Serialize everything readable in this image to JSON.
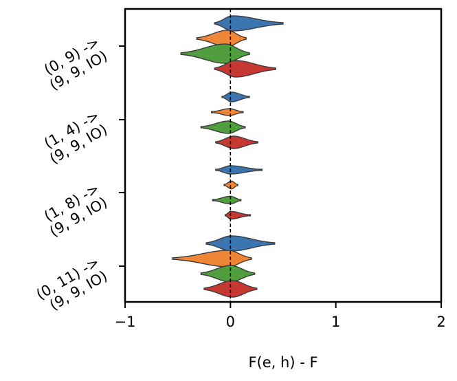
{
  "chart_data": {
    "type": "violin",
    "orientation": "horizontal",
    "xlabel": "F(e, h) - F",
    "ylabel": "",
    "xlim": [
      -1,
      2
    ],
    "xticks": [
      {
        "value": -1,
        "label": "−1"
      },
      {
        "value": 0,
        "label": "0"
      },
      {
        "value": 1,
        "label": "1"
      },
      {
        "value": 2,
        "label": "2"
      }
    ],
    "reference_line": {
      "x": 0,
      "style": "dashed"
    },
    "grid": false,
    "series_colors": [
      "#3a75af",
      "#ef8536",
      "#519e3e",
      "#c53932"
    ],
    "groups": [
      {
        "label_line1": "(0, 9) ->",
        "label_line2": "(9, 9, IO)",
        "violins": [
          {
            "min": -0.15,
            "max": 0.5,
            "center": 0.02,
            "width": 0.55
          },
          {
            "min": -0.32,
            "max": 0.15,
            "center": -0.03,
            "width": 0.6
          },
          {
            "min": -0.47,
            "max": 0.18,
            "center": -0.05,
            "width": 0.7
          },
          {
            "min": -0.15,
            "max": 0.43,
            "center": 0.05,
            "width": 0.6
          }
        ]
      },
      {
        "label_line1": "(1, 4) ->",
        "label_line2": "(9, 9, IO)",
        "violins": [
          {
            "min": -0.08,
            "max": 0.18,
            "center": 0.01,
            "width": 0.35
          },
          {
            "min": -0.18,
            "max": 0.12,
            "center": -0.01,
            "width": 0.25
          },
          {
            "min": -0.28,
            "max": 0.14,
            "center": -0.02,
            "width": 0.45
          },
          {
            "min": -0.14,
            "max": 0.26,
            "center": 0.03,
            "width": 0.45
          }
        ]
      },
      {
        "label_line1": "(1, 8) ->",
        "label_line2": "(9, 9, IO)",
        "violins": [
          {
            "min": -0.14,
            "max": 0.3,
            "center": 0.0,
            "width": 0.3
          },
          {
            "min": -0.06,
            "max": 0.07,
            "center": 0.01,
            "width": 0.28
          },
          {
            "min": -0.17,
            "max": 0.1,
            "center": 0.0,
            "width": 0.28
          },
          {
            "min": -0.05,
            "max": 0.19,
            "center": 0.0,
            "width": 0.28
          }
        ]
      },
      {
        "label_line1": "(0, 11) ->",
        "label_line2": "(9, 9, IO)",
        "violins": [
          {
            "min": -0.23,
            "max": 0.42,
            "center": 0.01,
            "width": 0.55
          },
          {
            "min": -0.55,
            "max": 0.2,
            "center": -0.02,
            "width": 0.6
          },
          {
            "min": -0.28,
            "max": 0.23,
            "center": 0.0,
            "width": 0.6
          },
          {
            "min": -0.25,
            "max": 0.25,
            "center": 0.02,
            "width": 0.6
          }
        ]
      }
    ]
  }
}
